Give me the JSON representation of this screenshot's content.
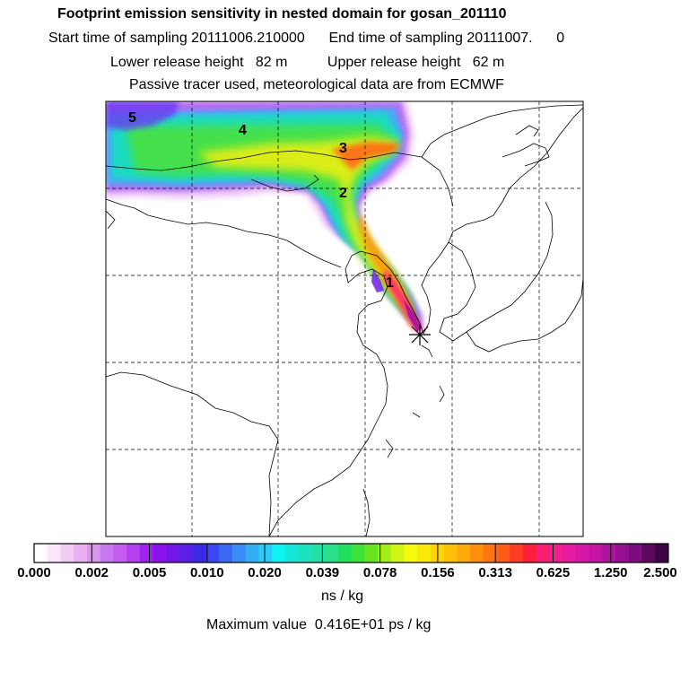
{
  "header": {
    "title": "Footprint emission sensitivity in nested domain for gosan_201110",
    "sampling_line": "Start time of sampling 20111006.210000      End time of sampling 20111007.      0",
    "release_line": "Lower release height   82 m          Upper release height   62 m",
    "tracer_line": "Passive tracer used, meteorological data are from ECMWF"
  },
  "map": {
    "day_labels": [
      "1",
      "2",
      "3",
      "4",
      "5"
    ],
    "receptor_marker": "star"
  },
  "colorbar": {
    "tick_labels": [
      "0.000",
      "0.002",
      "0.005",
      "0.010",
      "0.020",
      "0.039",
      "0.078",
      "0.156",
      "0.313",
      "0.625",
      "1.250",
      "2.500"
    ],
    "colors": [
      "#ffffff",
      "#fbe6fb",
      "#f3ccf3",
      "#eab0f3",
      "#dd96f0",
      "#c777ef",
      "#c55cf0",
      "#b63ff0",
      "#a022ee",
      "#8a12ec",
      "#7416ea",
      "#5b1fe6",
      "#3a2ae8",
      "#3b47f0",
      "#3c68f4",
      "#3a8cf6",
      "#35aef6",
      "#2bcdf6",
      "#0cf5f4",
      "#13e8d8",
      "#1be3c0",
      "#22e0a5",
      "#2bdf8b",
      "#1fdf5e",
      "#3be23a",
      "#66e51e",
      "#a2ee16",
      "#cff514",
      "#f5f90e",
      "#fbe80b",
      "#fed408",
      "#ffc007",
      "#ffaa08",
      "#ff8f0c",
      "#ff7512",
      "#ff5c18",
      "#ff3b24",
      "#ff1f3a",
      "#f81f72",
      "#f01e8e",
      "#e61aa1",
      "#d618a6",
      "#c314a4",
      "#ad139e",
      "#960f92",
      "#7a0c7d",
      "#5d085f",
      "#3f0444"
    ],
    "units": "ns / kg"
  },
  "max_value": "Maximum value  0.416E+01 ps / kg"
}
